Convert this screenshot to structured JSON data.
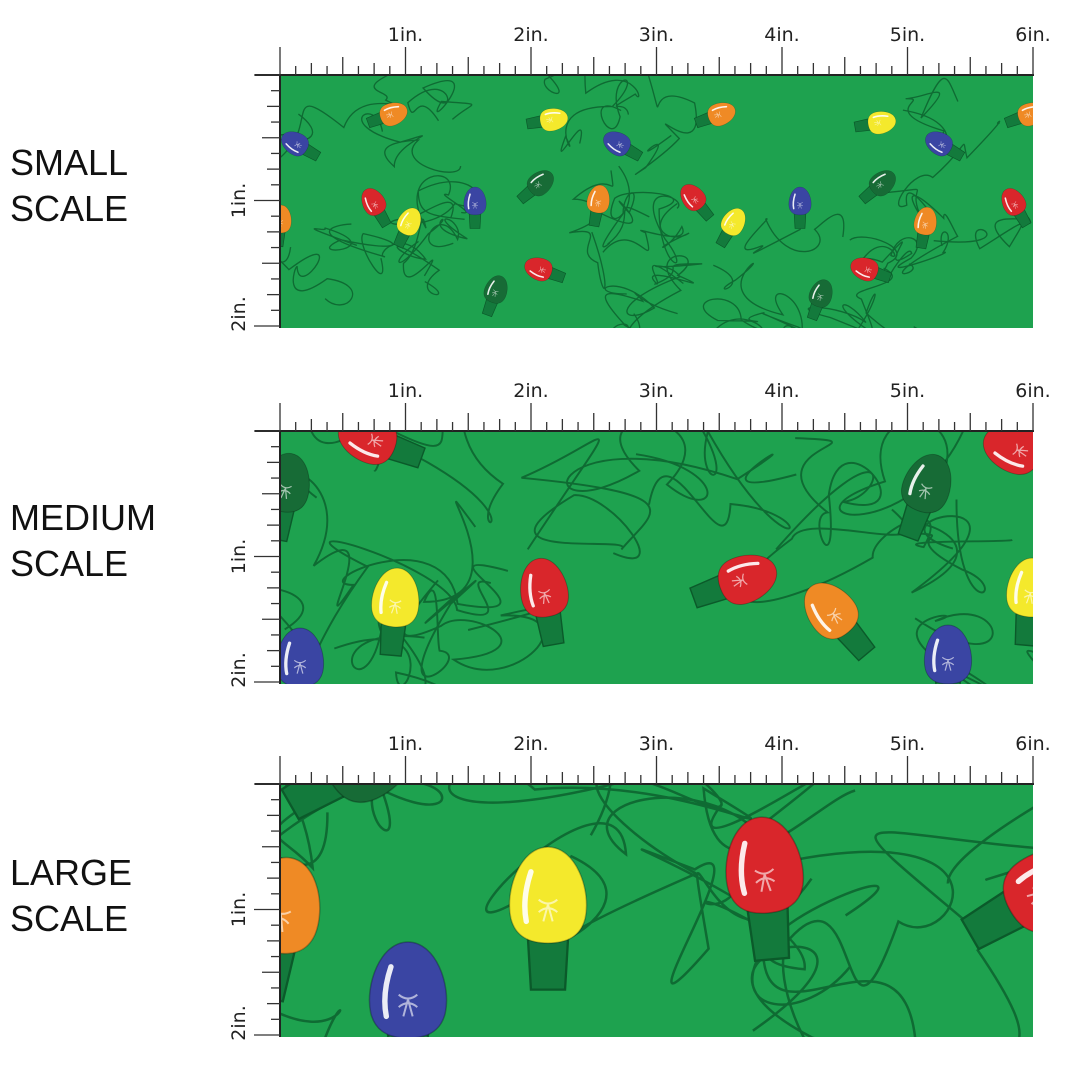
{
  "rows": [
    {
      "label_line1": "SMALL",
      "label_line2": "SCALE"
    },
    {
      "label_line1": "MEDIUM",
      "label_line2": "SCALE"
    },
    {
      "label_line1": "LARGE",
      "label_line2": "SCALE"
    }
  ],
  "ruler": {
    "horizontal_labels": [
      "1in.",
      "2in.",
      "3in.",
      "4in.",
      "5in.",
      "6in."
    ],
    "vertical_labels": [
      "1in.",
      "2in."
    ]
  },
  "colors": {
    "background_green": "#1ea24f",
    "wire": "#0f6b33",
    "socket": "#137a3c",
    "bulb_red": "#d9262b",
    "bulb_orange": "#ef8a25",
    "bulb_yellow": "#f4e92c",
    "bulb_blue": "#3a45a3",
    "bulb_darkgreen": "#176b36"
  }
}
